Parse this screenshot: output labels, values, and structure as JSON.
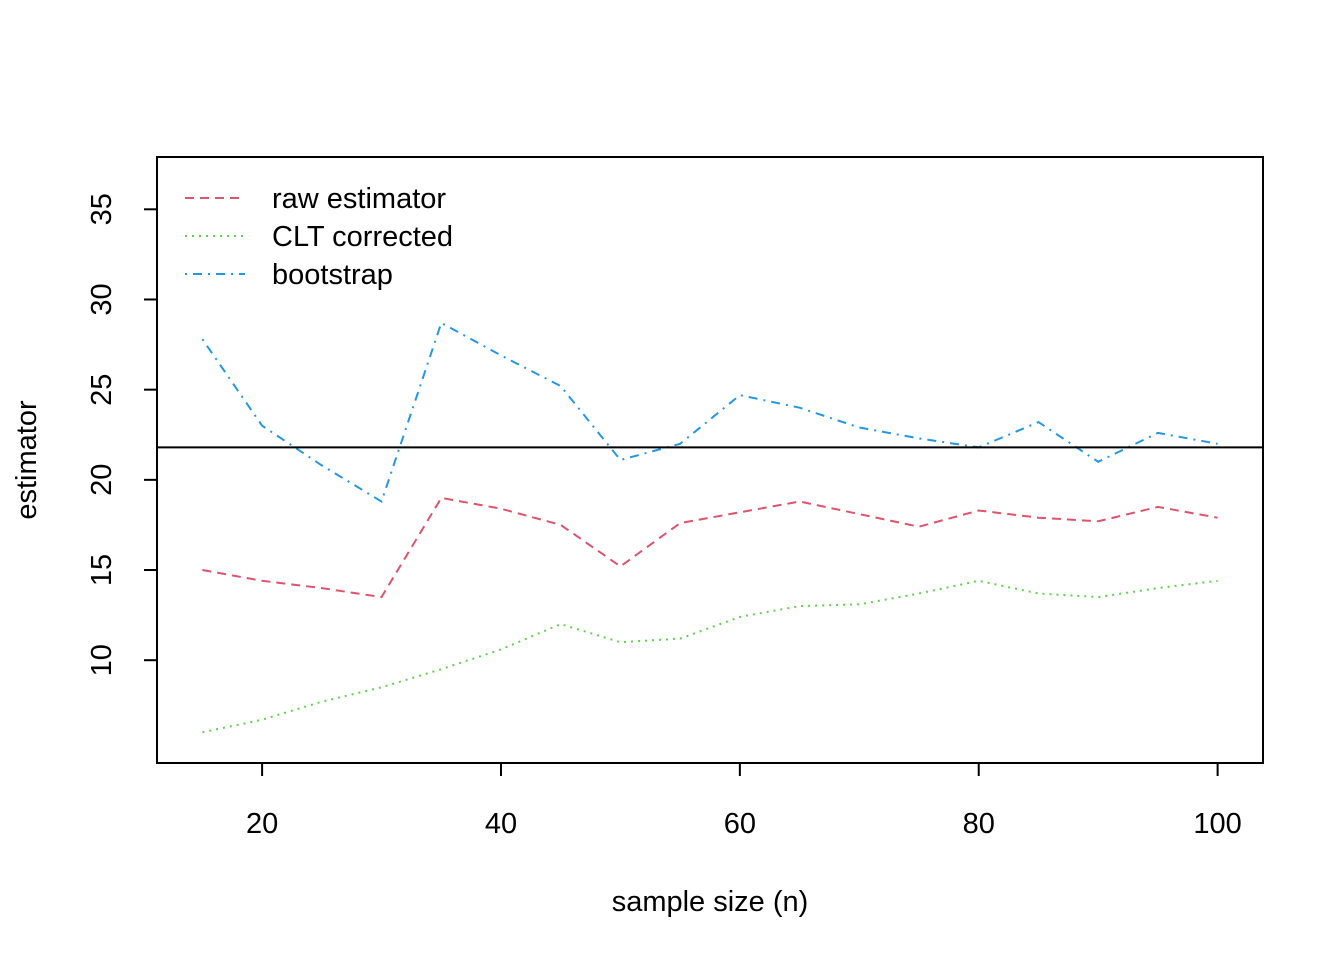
{
  "chart_data": {
    "type": "line",
    "xlabel": "sample size (n)",
    "ylabel": "estimator",
    "xlim": [
      11.2,
      103.8
    ],
    "ylim": [
      4.3,
      37.9
    ],
    "xticks": [
      20,
      40,
      60,
      80,
      100
    ],
    "yticks": [
      10,
      15,
      20,
      25,
      30,
      35
    ],
    "grid": false,
    "legend_position": "top-left",
    "reference_line": {
      "y": 21.8,
      "color": "#000000"
    },
    "x": [
      15,
      20,
      25,
      30,
      35,
      40,
      45,
      50,
      55,
      60,
      65,
      70,
      75,
      80,
      85,
      90,
      95,
      100
    ],
    "series": [
      {
        "name": "raw estimator",
        "color": "#DF536B",
        "dash": "dashed",
        "values": [
          15.0,
          14.4,
          14.0,
          13.5,
          19.0,
          18.4,
          17.5,
          15.2,
          17.6,
          18.2,
          18.8,
          18.1,
          17.4,
          18.3,
          17.9,
          17.7,
          18.5,
          17.9
        ]
      },
      {
        "name": "CLT corrected",
        "color": "#61D04F",
        "dash": "dotted",
        "values": [
          6.0,
          6.7,
          7.7,
          8.5,
          9.5,
          10.6,
          12.0,
          11.0,
          11.2,
          12.4,
          13.0,
          13.1,
          13.7,
          14.4,
          13.7,
          13.5,
          14.0,
          14.4
        ]
      },
      {
        "name": "bootstrap",
        "color": "#2297E6",
        "dash": "dotdash",
        "values": [
          27.8,
          23.0,
          20.8,
          18.8,
          28.7,
          26.9,
          25.2,
          21.1,
          22.0,
          24.7,
          24.0,
          22.9,
          22.3,
          21.8,
          23.2,
          21.0,
          22.6,
          22.0
        ]
      }
    ]
  }
}
